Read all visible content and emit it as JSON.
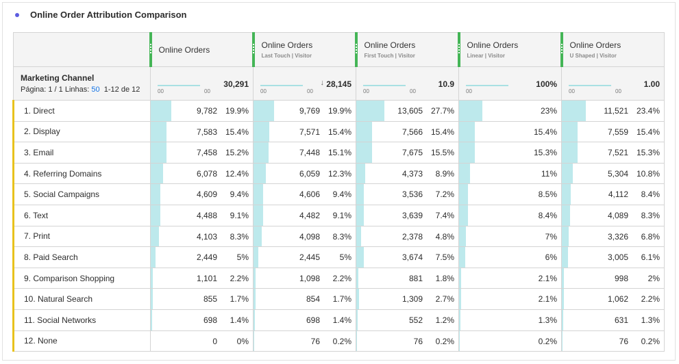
{
  "title": "Online Order Attribution Comparison",
  "header": {
    "dimension": "Marketing Channel",
    "page_label": "Página: 1 / 1",
    "rows_label": "Linhas:",
    "rows_value": "50",
    "range": "1-12 de 12"
  },
  "metrics": [
    {
      "name": "Online Orders",
      "sub": "",
      "total": "30,291",
      "axis_left": "00",
      "axis_right": "00",
      "sorted": false
    },
    {
      "name": "Online Orders",
      "sub": "Last Touch | Visitor",
      "total": "28,145",
      "axis_left": "00",
      "axis_right": "00",
      "sorted": true
    },
    {
      "name": "Online Orders",
      "sub": "First Touch | Visitor",
      "total": "10.9",
      "axis_left": "00",
      "axis_right": "00",
      "sorted": false
    },
    {
      "name": "Online Orders",
      "sub": "Linear | Visitor",
      "total": "100%",
      "axis_left": "00",
      "axis_right": "",
      "sorted": false
    },
    {
      "name": "Online Orders",
      "sub": "U Shaped | Visitor",
      "total": "1.00",
      "axis_left": "00",
      "axis_right": "00",
      "sorted": false
    }
  ],
  "rows": [
    {
      "label": "1. Direct",
      "cells": [
        [
          "9,782",
          "19.9%"
        ],
        [
          "9,769",
          "19.9%"
        ],
        [
          "13,605",
          "27.7%"
        ],
        [
          "",
          "23%"
        ],
        [
          "11,521",
          "23.4%"
        ]
      ]
    },
    {
      "label": "2. Display",
      "cells": [
        [
          "7,583",
          "15.4%"
        ],
        [
          "7,571",
          "15.4%"
        ],
        [
          "7,566",
          "15.4%"
        ],
        [
          "",
          "15.4%"
        ],
        [
          "7,559",
          "15.4%"
        ]
      ]
    },
    {
      "label": "3. Email",
      "cells": [
        [
          "7,458",
          "15.2%"
        ],
        [
          "7,448",
          "15.1%"
        ],
        [
          "7,675",
          "15.5%"
        ],
        [
          "",
          "15.3%"
        ],
        [
          "7,521",
          "15.3%"
        ]
      ]
    },
    {
      "label": "4. Referring Domains",
      "cells": [
        [
          "6,078",
          "12.4%"
        ],
        [
          "6,059",
          "12.3%"
        ],
        [
          "4,373",
          "8.9%"
        ],
        [
          "",
          "11%"
        ],
        [
          "5,304",
          "10.8%"
        ]
      ]
    },
    {
      "label": "5. Social Campaigns",
      "cells": [
        [
          "4,609",
          "9.4%"
        ],
        [
          "4,606",
          "9.4%"
        ],
        [
          "3,536",
          "7.2%"
        ],
        [
          "",
          "8.5%"
        ],
        [
          "4,112",
          "8.4%"
        ]
      ]
    },
    {
      "label": "6. Text",
      "cells": [
        [
          "4,488",
          "9.1%"
        ],
        [
          "4,482",
          "9.1%"
        ],
        [
          "3,639",
          "7.4%"
        ],
        [
          "",
          "8.4%"
        ],
        [
          "4,089",
          "8.3%"
        ]
      ]
    },
    {
      "label": "7. Print",
      "cells": [
        [
          "4,103",
          "8.3%"
        ],
        [
          "4,098",
          "8.3%"
        ],
        [
          "2,378",
          "4.8%"
        ],
        [
          "",
          "7%"
        ],
        [
          "3,326",
          "6.8%"
        ]
      ]
    },
    {
      "label": "8. Paid Search",
      "cells": [
        [
          "2,449",
          "5%"
        ],
        [
          "2,445",
          "5%"
        ],
        [
          "3,674",
          "7.5%"
        ],
        [
          "",
          "6%"
        ],
        [
          "3,005",
          "6.1%"
        ]
      ]
    },
    {
      "label": "9. Comparison Shopping",
      "cells": [
        [
          "1,101",
          "2.2%"
        ],
        [
          "1,098",
          "2.2%"
        ],
        [
          "881",
          "1.8%"
        ],
        [
          "",
          "2.1%"
        ],
        [
          "998",
          "2%"
        ]
      ]
    },
    {
      "label": "10. Natural Search",
      "cells": [
        [
          "855",
          "1.7%"
        ],
        [
          "854",
          "1.7%"
        ],
        [
          "1,309",
          "2.7%"
        ],
        [
          "",
          "2.1%"
        ],
        [
          "1,062",
          "2.2%"
        ]
      ]
    },
    {
      "label": "11. Social Networks",
      "cells": [
        [
          "698",
          "1.4%"
        ],
        [
          "698",
          "1.4%"
        ],
        [
          "552",
          "1.2%"
        ],
        [
          "",
          "1.3%"
        ],
        [
          "631",
          "1.3%"
        ]
      ]
    },
    {
      "label": "12. None",
      "cells": [
        [
          "0",
          "0%"
        ],
        [
          "76",
          "0.2%"
        ],
        [
          "76",
          "0.2%"
        ],
        [
          "",
          "0.2%"
        ],
        [
          "76",
          "0.2%"
        ]
      ]
    }
  ],
  "colors": {
    "accent_green": "#44b556",
    "bar": "#bde9ec",
    "row_marker": "#e8c21c",
    "title_dot": "#5c5ce0"
  }
}
